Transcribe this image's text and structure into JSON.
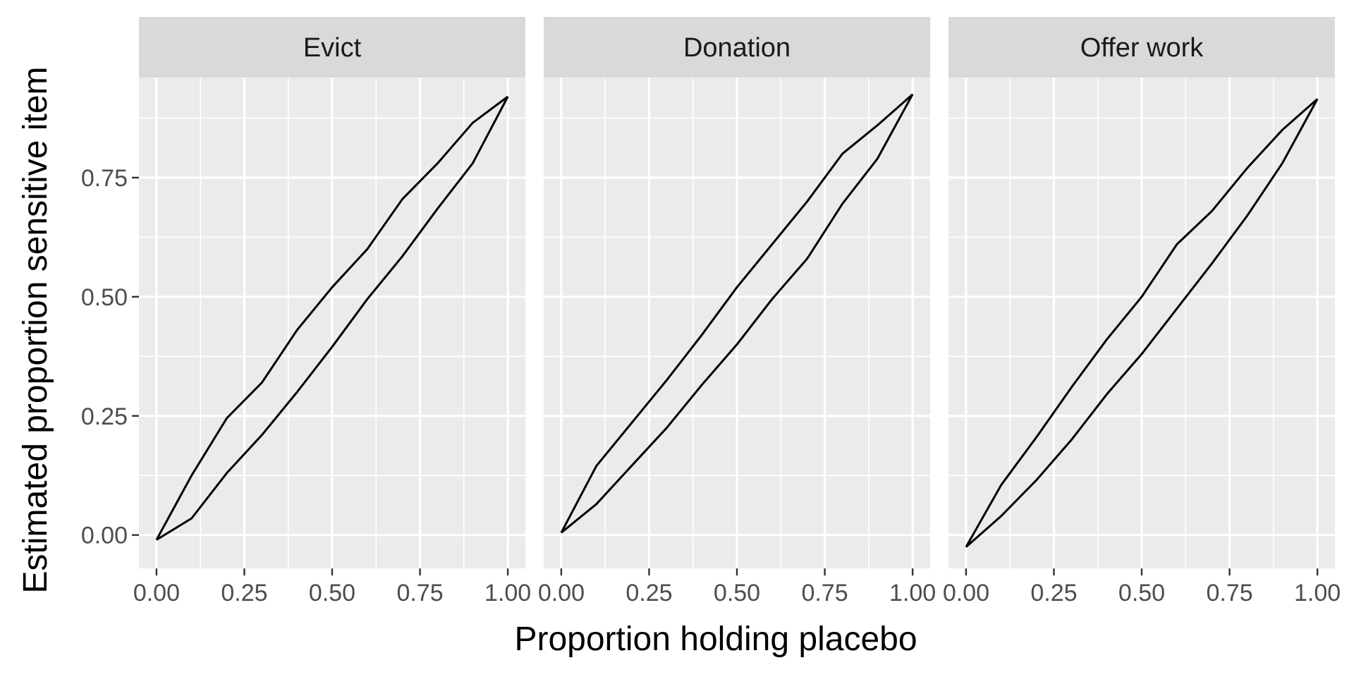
{
  "chart_data": {
    "type": "line",
    "xlabel": "Proportion holding placebo",
    "ylabel": "Estimated proportion sensitive item",
    "xlim": [
      -0.05,
      1.05
    ],
    "ylim": [
      -0.07,
      0.96
    ],
    "x_ticks": [
      0,
      0.25,
      0.5,
      0.75,
      1
    ],
    "x_tick_labels": [
      "0.00",
      "0.25",
      "0.50",
      "0.75",
      "1.00"
    ],
    "y_ticks": [
      0,
      0.25,
      0.5,
      0.75
    ],
    "y_tick_labels": [
      "0.00",
      "0.25",
      "0.50",
      "0.75"
    ],
    "grid": true,
    "line_color": "#000000",
    "panel_background": "#ebebeb",
    "strip_background": "#d9d9d9",
    "x": [
      0,
      0.1,
      0.2,
      0.3,
      0.4,
      0.5,
      0.6,
      0.7,
      0.8,
      0.9,
      1.0
    ],
    "panels": [
      {
        "label": "Evict",
        "series": [
          {
            "values": [
              -0.01,
              0.125,
              0.245,
              0.32,
              0.43,
              0.52,
              0.6,
              0.705,
              0.78,
              0.865,
              0.92
            ]
          },
          {
            "values": [
              -0.01,
              0.035,
              0.13,
              0.21,
              0.3,
              0.395,
              0.495,
              0.585,
              0.685,
              0.78,
              0.92
            ]
          }
        ]
      },
      {
        "label": "Donation",
        "series": [
          {
            "values": [
              0.005,
              0.145,
              0.235,
              0.325,
              0.42,
              0.52,
              0.61,
              0.7,
              0.8,
              0.86,
              0.925
            ]
          },
          {
            "values": [
              0.005,
              0.065,
              0.145,
              0.225,
              0.315,
              0.4,
              0.495,
              0.58,
              0.695,
              0.79,
              0.925
            ]
          }
        ]
      },
      {
        "label": "Offer work",
        "series": [
          {
            "values": [
              -0.025,
              0.105,
              0.205,
              0.31,
              0.41,
              0.5,
              0.61,
              0.68,
              0.77,
              0.85,
              0.915
            ]
          },
          {
            "values": [
              -0.025,
              0.04,
              0.115,
              0.2,
              0.295,
              0.38,
              0.475,
              0.57,
              0.67,
              0.78,
              0.915
            ]
          }
        ]
      }
    ]
  }
}
